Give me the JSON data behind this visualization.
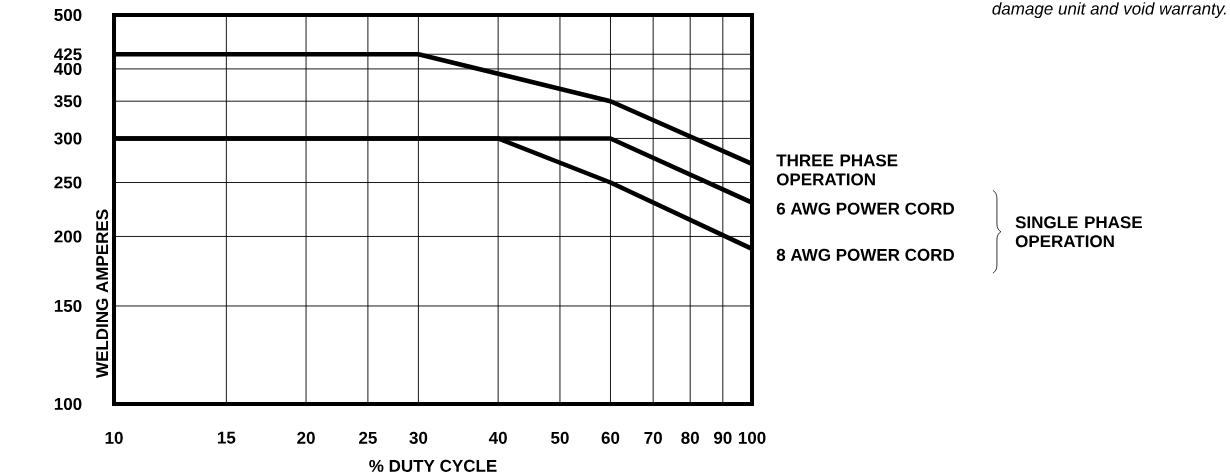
{
  "chart_data": {
    "type": "line",
    "xlabel": "% DUTY CYCLE",
    "ylabel": "WELDING AMPERES",
    "log": "xy",
    "xlim": [
      10,
      100
    ],
    "ylim": [
      100,
      500
    ],
    "xticks": [
      10,
      15,
      20,
      25,
      30,
      40,
      50,
      60,
      70,
      80,
      90,
      100
    ],
    "yticks": [
      100,
      150,
      200,
      250,
      300,
      350,
      400,
      425,
      500
    ],
    "grid": true,
    "series": [
      {
        "name": "THREE PHASE OPERATION",
        "color": "#000000",
        "x": [
          10,
          30,
          60,
          100
        ],
        "values": [
          425,
          425,
          350,
          270
        ]
      },
      {
        "name": "6 AWG POWER CORD",
        "color": "#000000",
        "x": [
          10,
          60,
          100
        ],
        "values": [
          300,
          300,
          230
        ]
      },
      {
        "name": "8 AWG POWER CORD",
        "color": "#000000",
        "x": [
          10,
          40,
          60,
          100
        ],
        "values": [
          300,
          300,
          250,
          190
        ]
      }
    ],
    "annotations": [
      "damage unit and void warranty.",
      "SINGLE PHASE OPERATION"
    ]
  }
}
